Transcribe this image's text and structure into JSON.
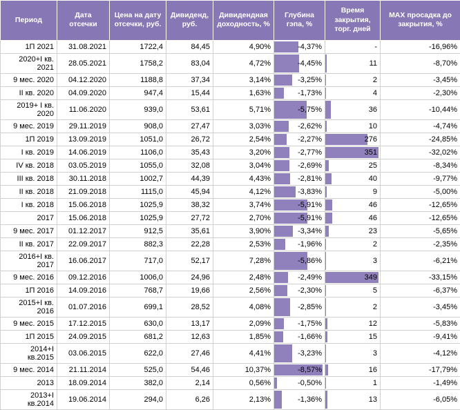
{
  "table": {
    "columns": [
      "Период",
      "Дата отсечки",
      "Цена на дату отсечки, руб.",
      "Дивиденд, руб.",
      "Дивидендная доходность, %",
      "Глубина гэпа, %",
      "Время закрытия, торг. дней",
      "MAX просадка до закрытия, %"
    ],
    "header_bg": "#8877b5",
    "header_color": "#ffffff",
    "bar_color": "#9080bc",
    "border_color": "#d0d0d0",
    "font_size": 11,
    "gap_bar_max_abs": 9.0,
    "days_bar_max": 360,
    "rows": [
      {
        "period": "1П 2021",
        "date": "31.08.2021",
        "price": "1722,4",
        "div": "84,45",
        "yield": "4,90%",
        "gap": "-4,37%",
        "gap_v": -4.37,
        "days": "-",
        "days_v": null,
        "dd": "-16,96%"
      },
      {
        "period": "2020+I кв. 2021",
        "date": "28.05.2021",
        "price": "1758,2",
        "div": "83,04",
        "yield": "4,72%",
        "gap": "-4,45%",
        "gap_v": -4.45,
        "days": "11",
        "days_v": 11,
        "dd": "-8,70%"
      },
      {
        "period": "9 мес. 2020",
        "date": "04.12.2020",
        "price": "1188,8",
        "div": "37,34",
        "yield": "3,14%",
        "gap": "-3,25%",
        "gap_v": -3.25,
        "days": "2",
        "days_v": 2,
        "dd": "-3,45%"
      },
      {
        "period": "II кв. 2020",
        "date": "04.09.2020",
        "price": "947,4",
        "div": "15,44",
        "yield": "1,63%",
        "gap": "-1,73%",
        "gap_v": -1.73,
        "days": "4",
        "days_v": 4,
        "dd": "-2,30%"
      },
      {
        "period": "2019+ I кв. 2020",
        "date": "11.06.2020",
        "price": "939,0",
        "div": "53,61",
        "yield": "5,71%",
        "gap": "-5,75%",
        "gap_v": -5.75,
        "days": "36",
        "days_v": 36,
        "dd": "-10,44%"
      },
      {
        "period": "9 мес. 2019",
        "date": "29.11.2019",
        "price": "908,0",
        "div": "27,47",
        "yield": "3,03%",
        "gap": "-2,62%",
        "gap_v": -2.62,
        "days": "10",
        "days_v": 10,
        "dd": "-4,74%"
      },
      {
        "period": "1П 2019",
        "date": "13.09.2019",
        "price": "1051,0",
        "div": "26,72",
        "yield": "2,54%",
        "gap": "-2,27%",
        "gap_v": -2.27,
        "days": "276",
        "days_v": 276,
        "dd": "-24,85%"
      },
      {
        "period": "I кв. 2019",
        "date": "14.06.2019",
        "price": "1106,0",
        "div": "35,43",
        "yield": "3,20%",
        "gap": "-2,77%",
        "gap_v": -2.77,
        "days": "351",
        "days_v": 351,
        "dd": "-32,02%"
      },
      {
        "period": "IV кв. 2018",
        "date": "03.05.2019",
        "price": "1055,0",
        "div": "32,08",
        "yield": "3,04%",
        "gap": "-2,69%",
        "gap_v": -2.69,
        "days": "25",
        "days_v": 25,
        "dd": "-8,34%"
      },
      {
        "period": "III кв. 2018",
        "date": "30.11.2018",
        "price": "1002,7",
        "div": "44,39",
        "yield": "4,43%",
        "gap": "-2,81%",
        "gap_v": -2.81,
        "days": "40",
        "days_v": 40,
        "dd": "-9,77%"
      },
      {
        "period": "II кв. 2018",
        "date": "21.09.2018",
        "price": "1115,0",
        "div": "45,94",
        "yield": "4,12%",
        "gap": "-3,83%",
        "gap_v": -3.83,
        "days": "9",
        "days_v": 9,
        "dd": "-5,00%"
      },
      {
        "period": "I кв. 2018",
        "date": "15.06.2018",
        "price": "1025,9",
        "div": "38,32",
        "yield": "3,74%",
        "gap": "-5,91%",
        "gap_v": -5.91,
        "days": "46",
        "days_v": 46,
        "dd": "-12,65%"
      },
      {
        "period": "2017",
        "date": "15.06.2018",
        "price": "1025,9",
        "div": "27,72",
        "yield": "2,70%",
        "gap": "-5,91%",
        "gap_v": -5.91,
        "days": "46",
        "days_v": 46,
        "dd": "-12,65%"
      },
      {
        "period": "9 мес. 2017",
        "date": "01.12.2017",
        "price": "912,5",
        "div": "35,61",
        "yield": "3,90%",
        "gap": "-3,34%",
        "gap_v": -3.34,
        "days": "23",
        "days_v": 23,
        "dd": "-5,65%"
      },
      {
        "period": "II кв. 2017",
        "date": "22.09.2017",
        "price": "882,3",
        "div": "22,28",
        "yield": "2,53%",
        "gap": "-1,96%",
        "gap_v": -1.96,
        "days": "2",
        "days_v": 2,
        "dd": "-2,35%"
      },
      {
        "period": "2016+I кв. 2017",
        "date": "16.06.2017",
        "price": "717,0",
        "div": "52,17",
        "yield": "7,28%",
        "gap": "-5,86%",
        "gap_v": -5.86,
        "days": "3",
        "days_v": 3,
        "dd": "-6,21%"
      },
      {
        "period": "9 мес. 2016",
        "date": "09.12.2016",
        "price": "1006,0",
        "div": "24,96",
        "yield": "2,48%",
        "gap": "-2,49%",
        "gap_v": -2.49,
        "days": "349",
        "days_v": 349,
        "dd": "-33,15%"
      },
      {
        "period": "1П 2016",
        "date": "14.09.2016",
        "price": "768,7",
        "div": "19,66",
        "yield": "2,56%",
        "gap": "-2,30%",
        "gap_v": -2.3,
        "days": "5",
        "days_v": 5,
        "dd": "-6,37%"
      },
      {
        "period": "2015+I кв. 2016",
        "date": "01.07.2016",
        "price": "699,1",
        "div": "28,52",
        "yield": "4,08%",
        "gap": "-2,85%",
        "gap_v": -2.85,
        "days": "2",
        "days_v": 2,
        "dd": "-3,45%"
      },
      {
        "period": "9 мес. 2015",
        "date": "17.12.2015",
        "price": "630,0",
        "div": "13,17",
        "yield": "2,09%",
        "gap": "-1,75%",
        "gap_v": -1.75,
        "days": "12",
        "days_v": 12,
        "dd": "-5,83%"
      },
      {
        "period": "1П 2015",
        "date": "24.09.2015",
        "price": "681,2",
        "div": "12,63",
        "yield": "1,85%",
        "gap": "-1,66%",
        "gap_v": -1.66,
        "days": "15",
        "days_v": 15,
        "dd": "-9,41%"
      },
      {
        "period": "2014+I кв.2015",
        "date": "03.06.2015",
        "price": "622,0",
        "div": "27,46",
        "yield": "4,41%",
        "gap": "-3,23%",
        "gap_v": -3.23,
        "days": "3",
        "days_v": 3,
        "dd": "-4,12%"
      },
      {
        "period": "9 мес. 2014",
        "date": "21.11.2014",
        "price": "525,0",
        "div": "54,46",
        "yield": "10,37%",
        "gap": "-8,57%",
        "gap_v": -8.57,
        "days": "16",
        "days_v": 16,
        "dd": "-17,79%"
      },
      {
        "period": "2013",
        "date": "18.09.2014",
        "price": "382,0",
        "div": "2,14",
        "yield": "0,56%",
        "gap": "-0,50%",
        "gap_v": -0.5,
        "days": "1",
        "days_v": 1,
        "dd": "-1,49%"
      },
      {
        "period": "2013+I кв.2014",
        "date": "19.06.2014",
        "price": "294,0",
        "div": "6,26",
        "yield": "2,13%",
        "gap": "-1,36%",
        "gap_v": -1.36,
        "days": "13",
        "days_v": 13,
        "dd": "-6,05%"
      }
    ]
  }
}
